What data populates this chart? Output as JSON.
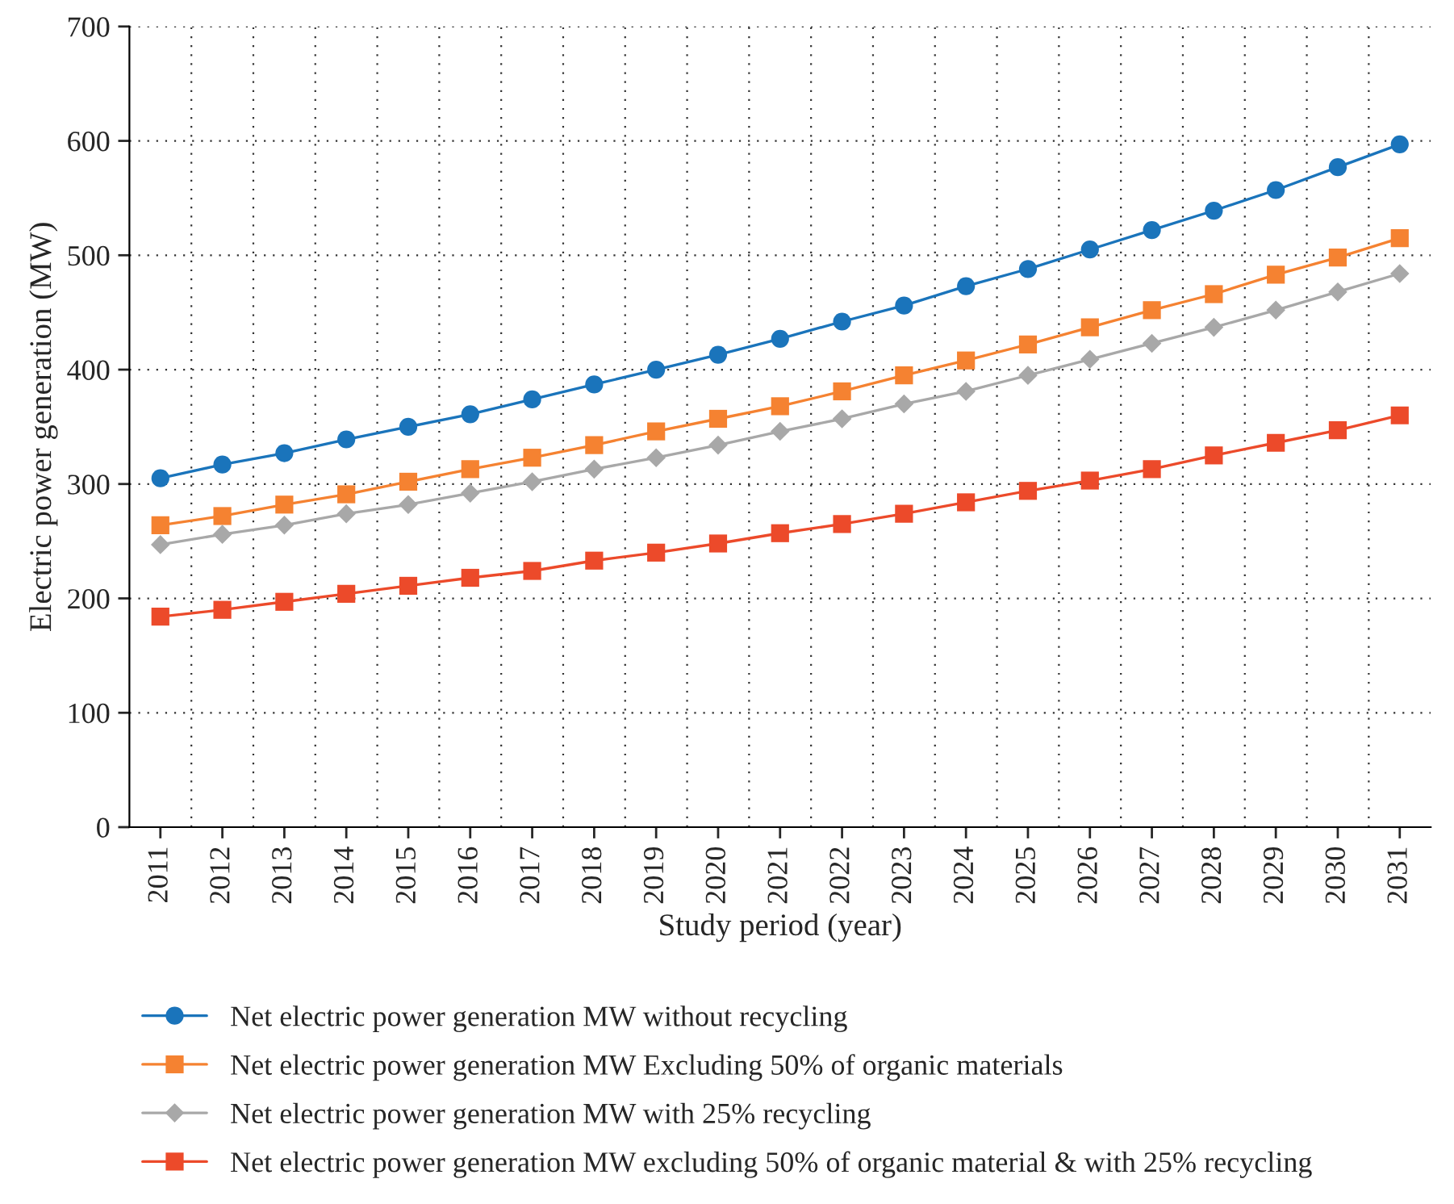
{
  "chart_data": {
    "type": "line",
    "xlabel": "Study period (year)",
    "ylabel": "Electric power generation (MW)",
    "categories": [
      "2011",
      "2012",
      "2013",
      "2014",
      "2015",
      "2016",
      "2017",
      "2018",
      "2019",
      "2020",
      "2021",
      "2022",
      "2023",
      "2024",
      "2025",
      "2026",
      "2027",
      "2028",
      "2029",
      "2030",
      "2031"
    ],
    "ylim": [
      0,
      700
    ],
    "yticks": [
      0,
      100,
      200,
      300,
      400,
      500,
      600,
      700
    ],
    "grid": true,
    "legend": "bottom",
    "series": [
      {
        "name": "Net electric power generation MW without recycling",
        "color": "#1a74bb",
        "marker": "circle",
        "values": [
          305,
          317,
          327,
          339,
          350,
          361,
          374,
          387,
          400,
          413,
          427,
          442,
          456,
          473,
          488,
          505,
          522,
          539,
          557,
          577,
          597
        ]
      },
      {
        "name": "Net electric power generation MW Excluding 50% of organic materials",
        "color": "#f58231",
        "marker": "square",
        "values": [
          264,
          272,
          282,
          291,
          302,
          313,
          323,
          334,
          346,
          357,
          368,
          381,
          395,
          408,
          422,
          437,
          452,
          466,
          483,
          498,
          515
        ]
      },
      {
        "name": "Net electric power generation MW with 25% recycling",
        "color": "#a8a8a8",
        "marker": "diamond",
        "values": [
          247,
          256,
          264,
          274,
          282,
          292,
          302,
          313,
          323,
          334,
          346,
          357,
          370,
          381,
          395,
          409,
          423,
          437,
          452,
          468,
          484
        ]
      },
      {
        "name": "Net electric power generation MW excluding 50% of organic material & with 25% recycling",
        "color": "#ec4a2a",
        "marker": "square",
        "values": [
          184,
          190,
          197,
          204,
          211,
          218,
          224,
          233,
          240,
          248,
          257,
          265,
          274,
          284,
          294,
          303,
          313,
          325,
          336,
          347,
          360
        ]
      }
    ]
  }
}
